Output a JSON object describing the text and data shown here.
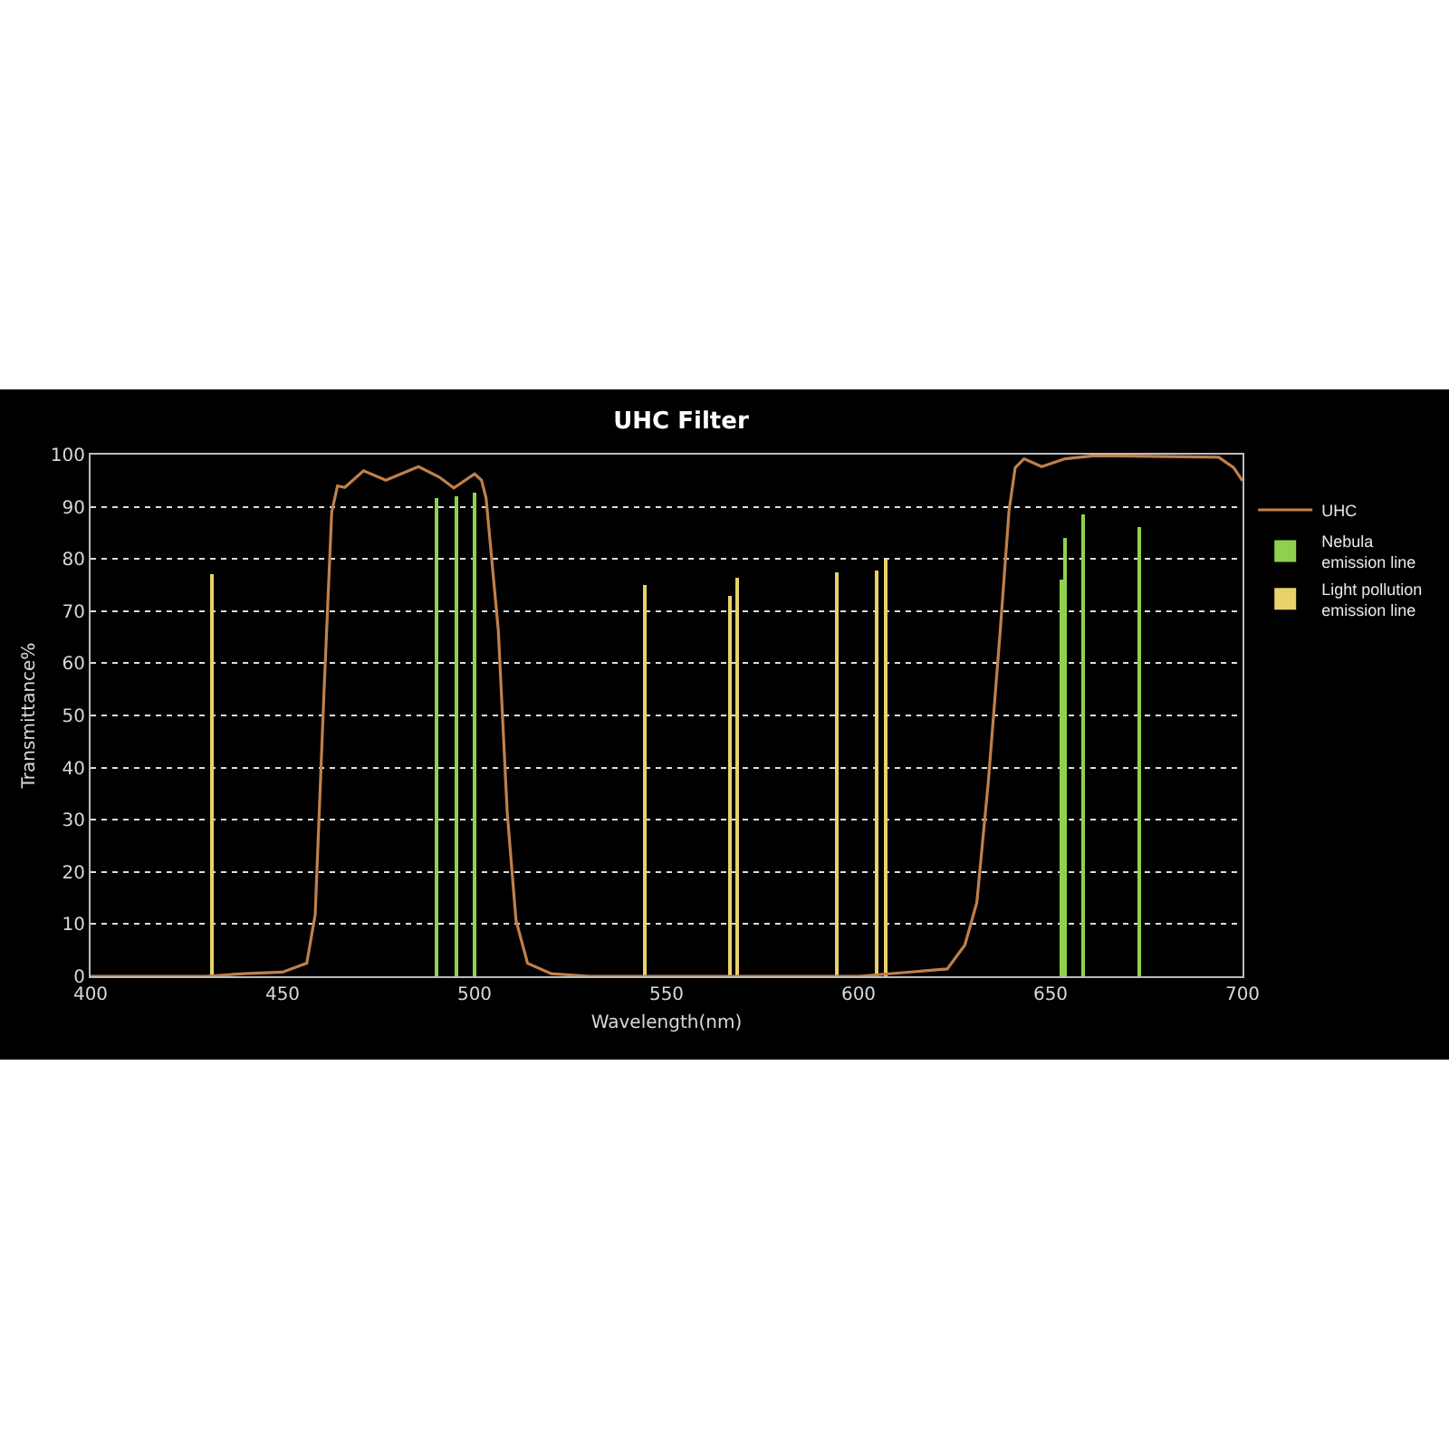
{
  "chart_data": {
    "type": "line",
    "title": "UHC Filter",
    "xlabel": "Wavelength(nm)",
    "ylabel": "Transmittance%",
    "xlim": [
      400,
      700
    ],
    "xticks": [
      400,
      450,
      500,
      550,
      600,
      650,
      700
    ],
    "ylim": [
      0,
      100
    ],
    "yticks": [
      0,
      10,
      20,
      30,
      40,
      50,
      60,
      70,
      80,
      90,
      100
    ],
    "grid": "y",
    "legend": "right",
    "marker": "none",
    "line_style": "solid",
    "series": [
      {
        "name": "UHC",
        "color": "#c0804a",
        "x": [
          400,
          430,
          440,
          450,
          456.3,
          458.5,
          460.8,
          462.8,
          464.3,
          466.2,
          471.1,
          476.9,
          485.4,
          490.8,
          494.6,
          500,
          501.8,
          503,
          506.2,
          508.5,
          510.8,
          513.8,
          520,
          530,
          560,
          600,
          623.1,
          627.7,
          630.8,
          633.8,
          636.9,
          639.2,
          640.8,
          643.1,
          647.7,
          653.8,
          661.5,
          693.8,
          697.7,
          700
        ],
        "values": [
          0,
          0,
          0.5,
          0.8,
          2.5,
          11.8,
          54.6,
          89,
          94,
          93.7,
          96.9,
          95.1,
          97.7,
          95.7,
          93.6,
          96.3,
          95.1,
          91.7,
          66.2,
          31.5,
          10.7,
          2.5,
          0.5,
          0,
          0,
          0,
          1.4,
          6,
          14.1,
          37.3,
          66.2,
          89.3,
          97.5,
          99.2,
          97.7,
          99.2,
          99.8,
          99.5,
          97.5,
          95
        ]
      },
      {
        "name": "Nebula emission line",
        "type": "bar",
        "color": "#8fd14f",
        "x": [
          490.3,
          495.4,
          500.2,
          652.9,
          653.7,
          658.6,
          673.1
        ],
        "values": [
          91.7,
          92,
          92.8,
          76,
          84,
          88.4,
          86
        ]
      },
      {
        "name": "Light pollution emission line",
        "type": "bar",
        "color": "#e8d26a",
        "x": [
          431.5,
          544.3,
          566.5,
          568.5,
          594.6,
          604.9,
          607.2
        ],
        "values": [
          77,
          75,
          73,
          76.4,
          77.5,
          77.8,
          79.7
        ]
      }
    ]
  }
}
